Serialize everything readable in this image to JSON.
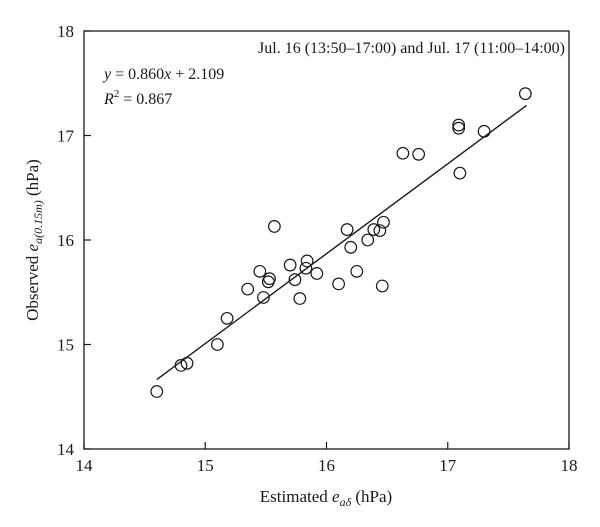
{
  "chart_data": {
    "type": "scatter",
    "title": "",
    "xlabel": {
      "prefix": "Estimated ",
      "var": "e",
      "sub": "aδ",
      "unit": " (hPa)"
    },
    "ylabel": {
      "prefix": "Observed ",
      "var": "e",
      "sub": "a(0.15m)",
      "unit": "  (hPa)"
    },
    "xlim": [
      14,
      18
    ],
    "ylim": [
      14,
      18
    ],
    "xticks": [
      "14",
      "15",
      "16",
      "17",
      "18"
    ],
    "yticks": [
      "14",
      "15",
      "16",
      "17",
      "18"
    ],
    "grid": false,
    "legend": "none",
    "annotation_period": "Jul. 16 (13:50–17:00) and Jul. 17 (11:00–14:00)",
    "equation": {
      "y": "y",
      "eq": " = 0.860",
      "x": "x",
      "rest": " + 2.109"
    },
    "r2": {
      "r": "R",
      "sup": "2",
      "rest": " = 0.867"
    },
    "regression": {
      "slope": 0.86,
      "intercept": 2.109,
      "x_range": [
        14.6,
        17.65
      ]
    },
    "points": [
      [
        14.6,
        14.55
      ],
      [
        14.8,
        14.8
      ],
      [
        14.85,
        14.82
      ],
      [
        15.1,
        15.0
      ],
      [
        15.18,
        15.25
      ],
      [
        15.35,
        15.53
      ],
      [
        15.45,
        15.7
      ],
      [
        15.48,
        15.45
      ],
      [
        15.52,
        15.6
      ],
      [
        15.53,
        15.63
      ],
      [
        15.57,
        16.13
      ],
      [
        15.7,
        15.76
      ],
      [
        15.74,
        15.62
      ],
      [
        15.78,
        15.44
      ],
      [
        15.83,
        15.73
      ],
      [
        15.84,
        15.8
      ],
      [
        15.92,
        15.68
      ],
      [
        16.1,
        15.58
      ],
      [
        16.17,
        16.1
      ],
      [
        16.2,
        15.93
      ],
      [
        16.25,
        15.7
      ],
      [
        16.34,
        16.0
      ],
      [
        16.39,
        16.1
      ],
      [
        16.44,
        16.09
      ],
      [
        16.46,
        15.56
      ],
      [
        16.47,
        16.17
      ],
      [
        16.63,
        16.83
      ],
      [
        16.76,
        16.82
      ],
      [
        17.09,
        17.1
      ],
      [
        17.09,
        17.07
      ],
      [
        17.1,
        16.64
      ],
      [
        17.3,
        17.04
      ],
      [
        17.64,
        17.4
      ]
    ]
  }
}
